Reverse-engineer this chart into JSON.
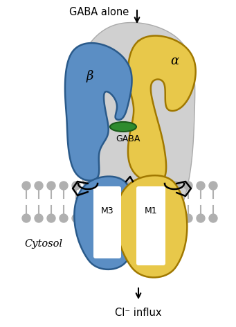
{
  "background_color": "#ffffff",
  "beta_color": "#5b8ec4",
  "beta_edge_color": "#2a5a8a",
  "alpha_color": "#e8c84a",
  "alpha_edge_color": "#a07800",
  "gaba_color": "#2e8b2e",
  "gaba_edge_color": "#1a5a1a",
  "gray_bg_color": "#d0d0d0",
  "gray_bg_edge": "#aaaaaa",
  "membrane_color": "#c8c8c8",
  "lipid_color": "#b0b0b0",
  "white_color": "#ffffff",
  "black": "#000000",
  "label_gaba_alone": "GABA alone",
  "label_gaba": "GABA",
  "label_beta": "β",
  "label_alpha": "α",
  "label_M3": "M3",
  "label_M1": "M1",
  "label_cytosol": "Cytosol",
  "label_cl_influx": "Cl⁻ influx"
}
